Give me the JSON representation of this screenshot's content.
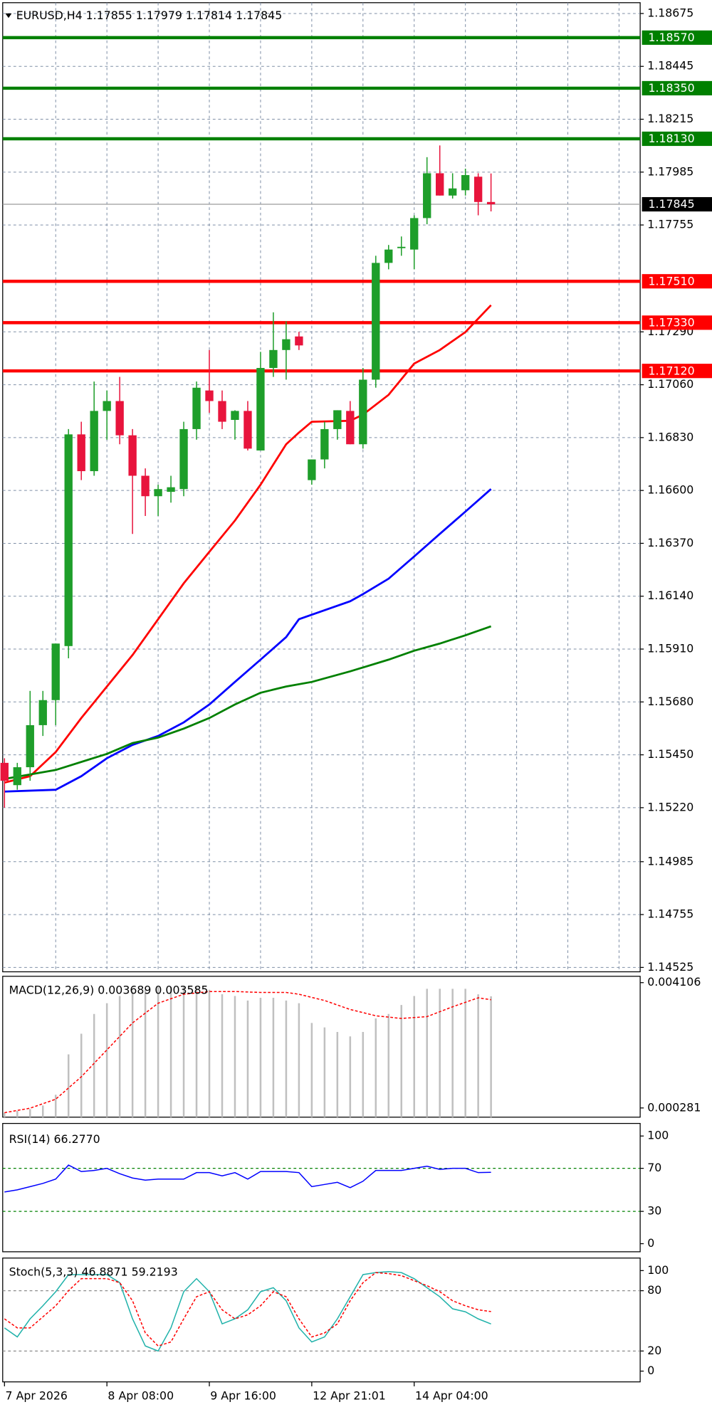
{
  "chart_data": [
    {
      "type": "candlestick",
      "title": "EURUSD,H4  1.17855 1.17979 1.17814 1.17845",
      "xlim": [
        -0.14,
        49.65
      ],
      "xticks": [
        {
          "value": 0,
          "label": "7 Apr 2026"
        },
        {
          "value": 8,
          "label": "8 Apr 08:00"
        },
        {
          "value": 16,
          "label": "9 Apr 16:00"
        },
        {
          "value": 24,
          "label": "12 Apr 21:01"
        },
        {
          "value": 32,
          "label": "14 Apr 04:00"
        }
      ],
      "ylim": [
        1.14506,
        1.18722
      ],
      "yticks": [
        1.18675,
        1.18445,
        1.18215,
        1.17985,
        1.17755,
        {
          "value": 1.1729,
          "label": "1.17290"
        },
        {
          "value": 1.1706,
          "label": "1.17060"
        },
        {
          "value": 1.1683,
          "label": "1.16830"
        },
        {
          "value": 1.166,
          "label": "1.16600"
        },
        {
          "value": 1.1637,
          "label": "1.16370"
        },
        {
          "value": 1.1614,
          "label": "1.16140"
        },
        {
          "value": 1.1591,
          "label": "1.15910"
        },
        {
          "value": 1.1568,
          "label": "1.15680"
        },
        {
          "value": 1.1545,
          "label": "1.15450"
        },
        {
          "value": 1.1522,
          "label": "1.15220"
        },
        1.14985,
        1.14755,
        1.14525
      ],
      "grid": true,
      "up_color": "#1e9e2a",
      "down_color": "#e8143c",
      "open": [
        1.15415,
        1.15318,
        1.15396,
        1.15579,
        1.15688,
        1.15923,
        1.16844,
        1.16684,
        1.16946,
        1.16989,
        1.1684,
        1.16664,
        1.16575,
        1.16594,
        1.16606,
        1.16867,
        1.17035,
        1.16989,
        1.16907,
        1.16946,
        1.16774,
        1.17133,
        1.17211,
        1.1727,
        1.16645,
        1.16735,
        1.16867,
        1.16946,
        1.16801,
        1.17082,
        1.1759,
        1.17655,
        1.17648,
        1.17785,
        1.1798,
        1.17883,
        1.17906,
        1.17965,
        1.17855
      ],
      "high": [
        1.15435,
        1.15415,
        1.15728,
        1.15728,
        1.15934,
        1.16867,
        1.16899,
        1.17074,
        1.17035,
        1.17094,
        1.16867,
        1.16696,
        1.16625,
        1.16664,
        1.16899,
        1.17074,
        1.17211,
        1.17035,
        1.16949,
        1.16989,
        1.17203,
        1.17375,
        1.17336,
        1.1729,
        1.16735,
        1.16899,
        1.16949,
        1.16989,
        1.17133,
        1.17621,
        1.17668,
        1.17705,
        1.17797,
        1.1805,
        1.18101,
        1.1798,
        1.18,
        1.1798,
        1.17979
      ],
      "low": [
        1.1522,
        1.15298,
        1.15337,
        1.15532,
        1.15579,
        1.1587,
        1.16645,
        1.16664,
        1.16821,
        1.16801,
        1.16411,
        1.16489,
        1.16489,
        1.16547,
        1.16575,
        1.16821,
        1.16938,
        1.16867,
        1.16821,
        1.16774,
        1.16774,
        1.17094,
        1.17082,
        1.17211,
        1.16625,
        1.16696,
        1.16821,
        1.16801,
        1.16782,
        1.17047,
        1.17562,
        1.17621,
        1.17562,
        1.17758,
        1.17883,
        1.1787,
        1.17883,
        1.17797,
        1.17814
      ],
      "close": [
        1.15337,
        1.15396,
        1.15579,
        1.15688,
        1.15934,
        1.16844,
        1.16684,
        1.16946,
        1.16989,
        1.1684,
        1.16664,
        1.16575,
        1.16606,
        1.16614,
        1.16867,
        1.17047,
        1.16989,
        1.16899,
        1.16946,
        1.16782,
        1.17133,
        1.17211,
        1.17258,
        1.17231,
        1.16735,
        1.16867,
        1.16949,
        1.16801,
        1.17082,
        1.1759,
        1.17648,
        1.1766,
        1.17785,
        1.1798,
        1.17883,
        1.17914,
        1.17972,
        1.17855,
        1.17845
      ],
      "series": [
        {
          "color": "#ff0000",
          "x": [
            0,
            2,
            4,
            6,
            8,
            10,
            12,
            14,
            16,
            18,
            20,
            22,
            23,
            24,
            27,
            28,
            30,
            32,
            34,
            36,
            38
          ],
          "values": [
            1.15329,
            1.15357,
            1.15462,
            1.1561,
            1.15747,
            1.15884,
            1.1604,
            1.16196,
            1.16333,
            1.16469,
            1.16625,
            1.16801,
            1.16852,
            1.16899,
            1.16903,
            1.1693,
            1.17016,
            1.17152,
            1.17211,
            1.17289,
            1.17406
          ]
        },
        {
          "color": "#0000ff",
          "x": [
            0,
            4,
            6,
            8,
            10,
            12,
            14,
            16,
            18,
            20,
            22,
            23,
            25,
            27,
            28,
            30,
            32,
            34,
            36,
            38
          ],
          "values": [
            1.1529,
            1.15298,
            1.15357,
            1.15435,
            1.15493,
            1.15532,
            1.15591,
            1.15669,
            1.15767,
            1.15864,
            1.15962,
            1.1604,
            1.16079,
            1.16118,
            1.16149,
            1.16216,
            1.16313,
            1.16411,
            1.16508,
            1.16606
          ]
        },
        {
          "color": "#008000",
          "x": [
            0,
            4,
            8,
            10,
            12,
            14,
            16,
            18,
            20,
            22,
            24,
            27,
            30,
            32,
            34,
            36,
            38
          ],
          "values": [
            1.15345,
            1.15384,
            1.15454,
            1.15501,
            1.15525,
            1.15564,
            1.1561,
            1.15669,
            1.1572,
            1.15747,
            1.15767,
            1.15813,
            1.15864,
            1.15903,
            1.15934,
            1.1597,
            1.16009
          ]
        }
      ],
      "levels": [
        {
          "value": 1.1857,
          "label": "1.18570",
          "color": "#008000"
        },
        {
          "value": 1.1835,
          "label": "1.18350",
          "color": "#008000"
        },
        {
          "value": 1.1813,
          "label": "1.18130",
          "color": "#008000"
        },
        {
          "value": 1.1751,
          "label": "1.17510",
          "color": "#ff0000"
        },
        {
          "value": 1.1733,
          "label": "1.17330",
          "color": "#ff0000"
        },
        {
          "value": 1.1712,
          "label": "1.17120",
          "color": "#ff0000"
        }
      ],
      "last_price": 1.17845
    },
    {
      "type": "bar",
      "title": "MACD(12,26,9) 0.003689 0.003585",
      "ylim": [
        0,
        0.0043
      ],
      "yticks": [
        0.004106,
        0.000281
      ],
      "color": "#c0c0c0",
      "values": [
        0.000137,
        0.000192,
        0.000246,
        0.000356,
        0.000685,
        0.001917,
        0.002547,
        0.00315,
        0.003478,
        0.003698,
        0.003835,
        0.003889,
        0.003972,
        0.003972,
        0.003972,
        0.003972,
        0.003889,
        0.003752,
        0.003698,
        0.003561,
        0.003643,
        0.003643,
        0.003561,
        0.003478,
        0.002876,
        0.002739,
        0.002602,
        0.002465,
        0.002602,
        0.003013,
        0.00315,
        0.003424,
        0.003698,
        0.003917,
        0.003917,
        0.003917,
        0.003917,
        0.00375,
        0.003689
      ],
      "series": [
        {
          "color": "#ff0000",
          "dashed": true,
          "x": [
            0,
            2,
            4,
            6,
            8,
            10,
            12,
            14,
            16,
            18,
            20,
            22,
            23,
            25,
            27,
            29,
            31,
            33,
            35,
            37,
            38
          ],
          "values": [
            0.000137,
            0.000274,
            0.000548,
            0.001233,
            0.002054,
            0.002876,
            0.003478,
            0.003752,
            0.003835,
            0.003835,
            0.003807,
            0.003807,
            0.003752,
            0.003561,
            0.003287,
            0.003095,
            0.003013,
            0.003068,
            0.003369,
            0.003643,
            0.003585
          ]
        }
      ]
    },
    {
      "type": "line",
      "title": "RSI(14) 66.2770",
      "ylim": [
        0,
        100
      ],
      "yticks": [
        100,
        70,
        30,
        0
      ],
      "levels": [
        {
          "value": 70,
          "color": "#008000"
        },
        {
          "value": 30,
          "color": "#008000"
        }
      ],
      "series": [
        {
          "color": "#0000ff",
          "values": [
            48,
            50,
            53,
            56,
            60,
            73,
            67,
            68,
            70,
            65,
            61,
            59,
            60,
            60,
            60,
            66,
            66,
            63,
            66,
            60,
            67,
            67,
            67,
            66,
            53,
            55,
            57,
            52,
            58,
            68,
            68,
            68,
            70,
            72,
            69,
            70,
            70,
            66,
            66.277
          ]
        }
      ]
    },
    {
      "type": "line",
      "title": "Stoch(5,3,3) 46.8871 59.2193",
      "ylim": [
        0,
        100
      ],
      "yticks": [
        100,
        80,
        20,
        0
      ],
      "levels": [
        {
          "value": 80,
          "color": "#8a8a8a"
        },
        {
          "value": 20,
          "color": "#8a8a8a"
        }
      ],
      "series": [
        {
          "color": "#20b2aa",
          "values": [
            43,
            34,
            52,
            65,
            79,
            96,
            96,
            96,
            96,
            88,
            52,
            25,
            20,
            43,
            79,
            92,
            79,
            47,
            52,
            61,
            79,
            83,
            70,
            43,
            29,
            34,
            52,
            74,
            96,
            98,
            99,
            98,
            92,
            83,
            74,
            62,
            59,
            52,
            46.8871
          ]
        },
        {
          "color": "#ff0000",
          "dashed": true,
          "values": [
            52,
            43,
            43,
            54,
            65,
            80,
            92,
            92,
            92,
            88,
            70,
            38,
            25,
            29,
            52,
            74,
            79,
            61,
            52,
            56,
            65,
            79,
            74,
            52,
            34,
            38,
            47,
            70,
            88,
            98,
            97,
            95,
            90,
            85,
            79,
            70,
            65,
            61,
            59.2193
          ]
        }
      ]
    }
  ]
}
